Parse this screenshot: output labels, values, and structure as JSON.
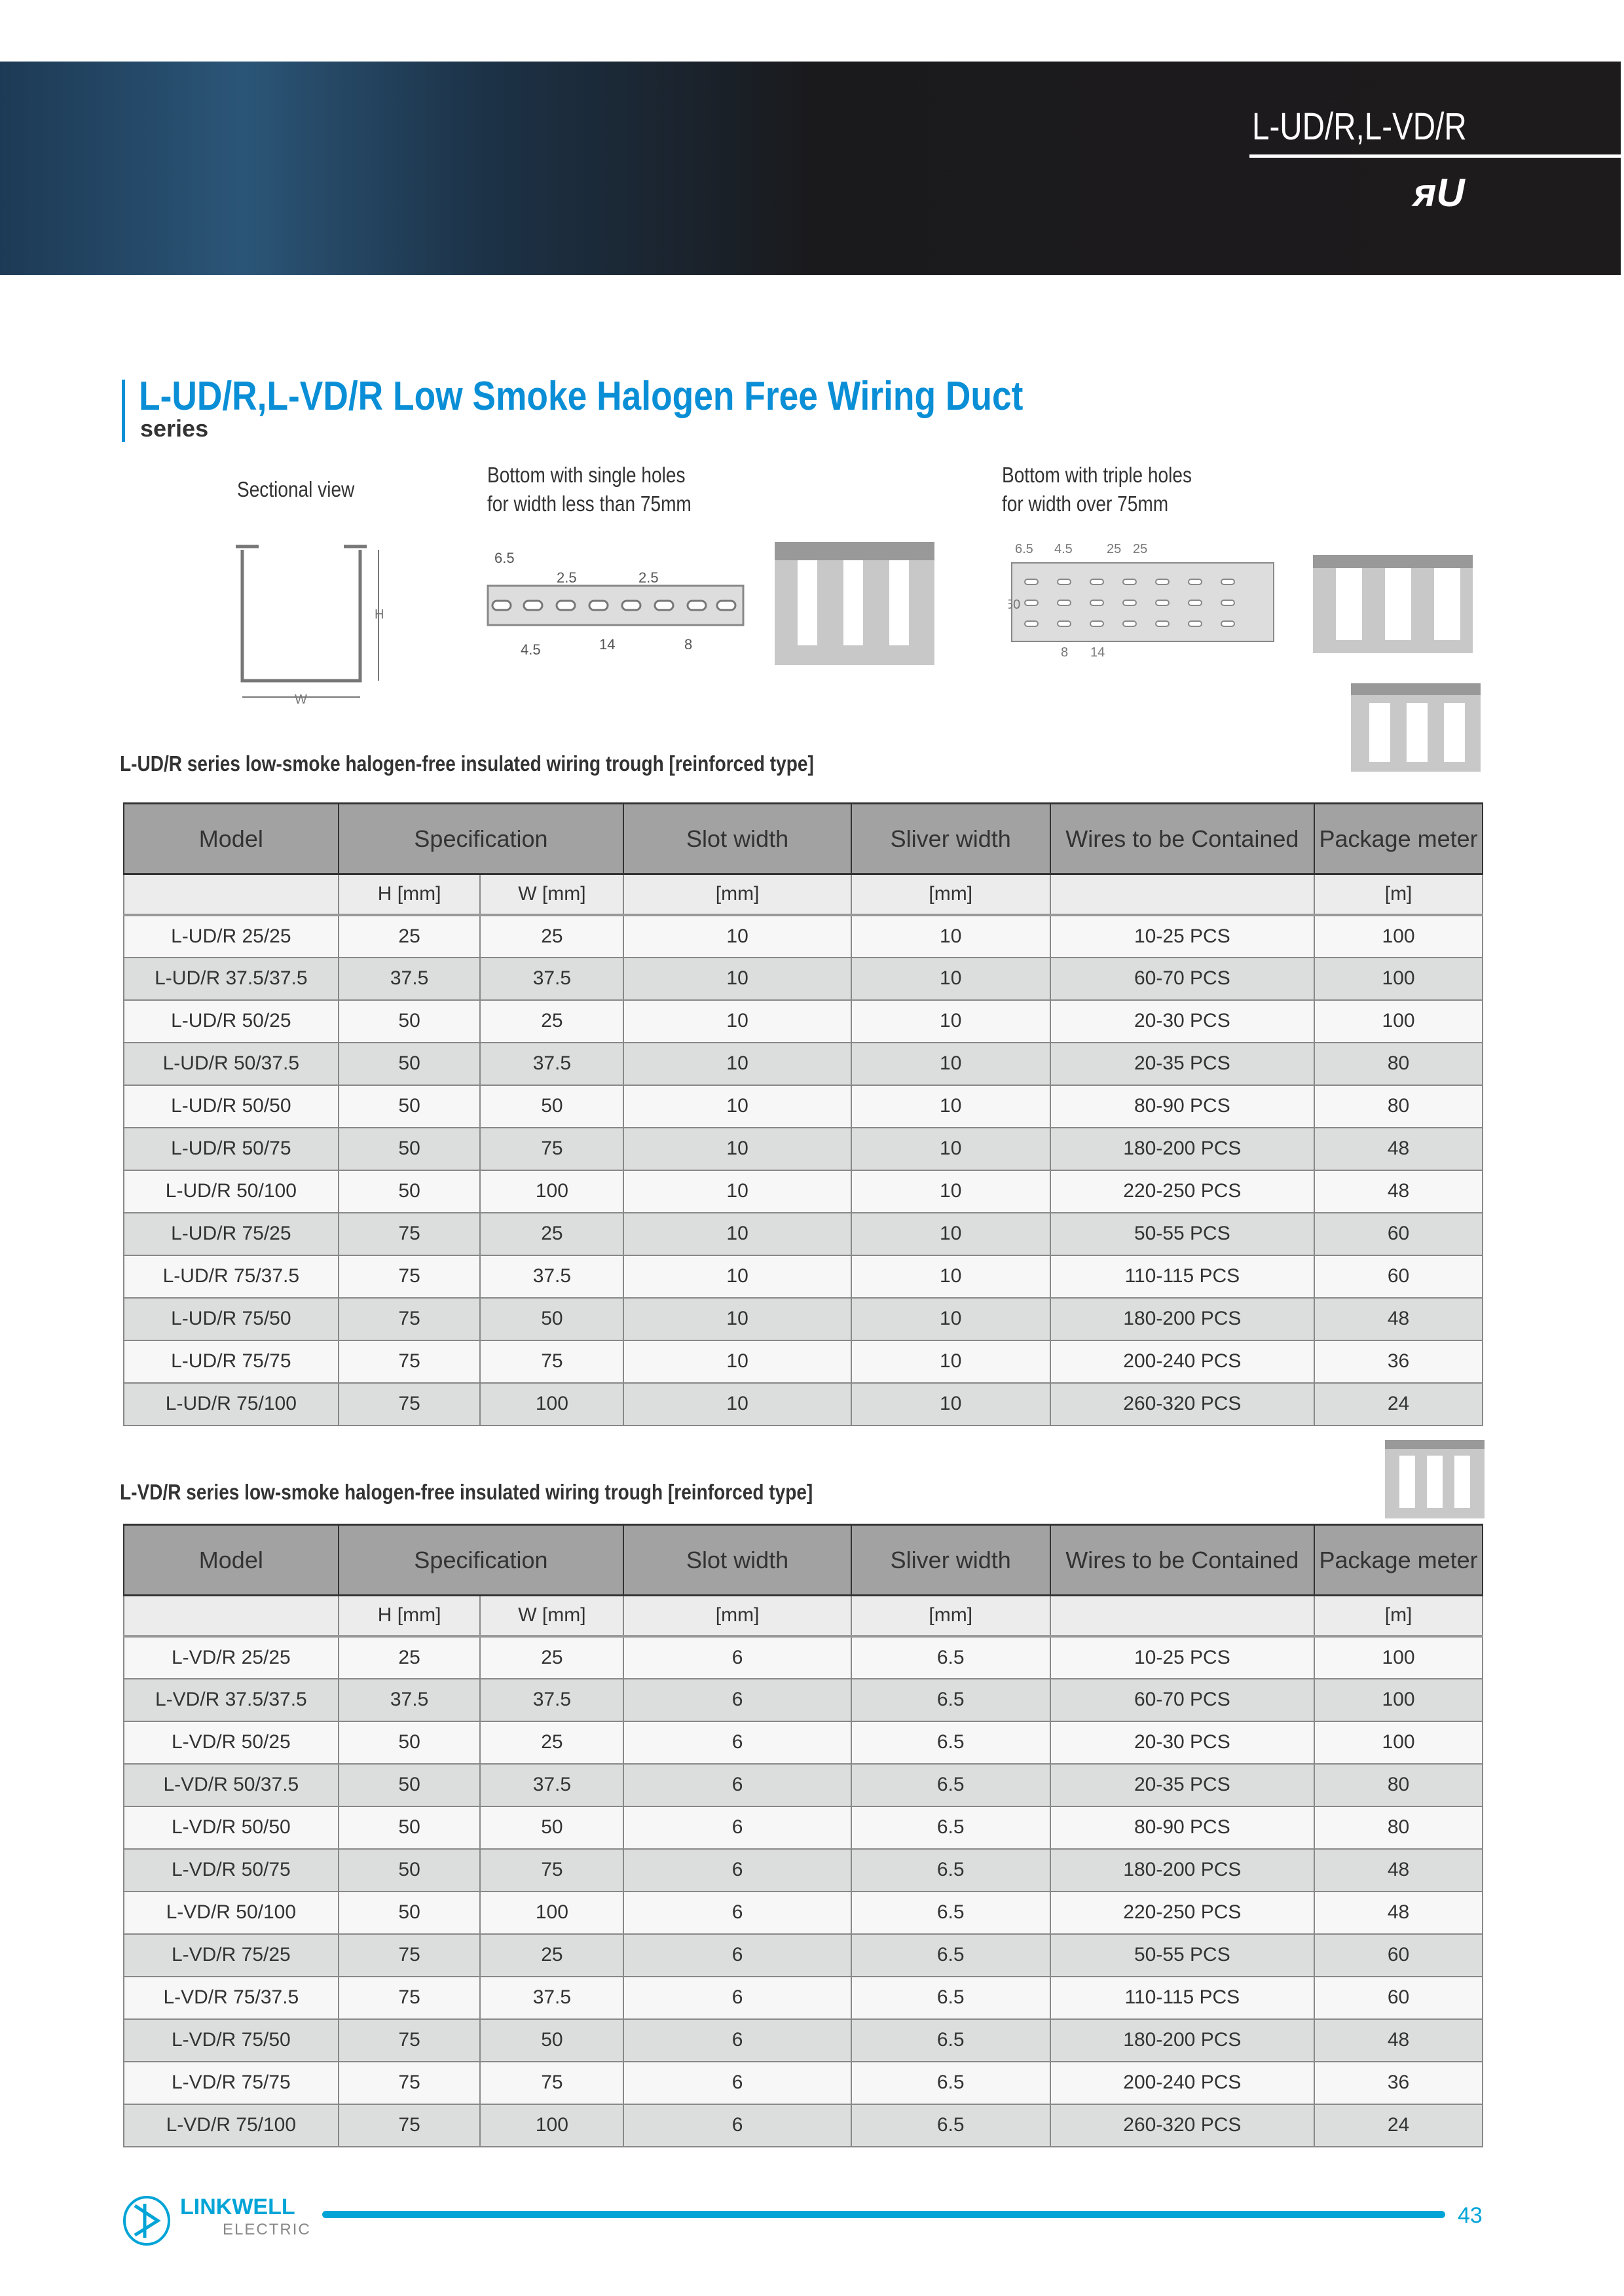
{
  "header": {
    "product_code": "L-UD/R,L-VD/R",
    "cert_logo": "UL"
  },
  "title": {
    "main": "L-UD/R,L-VD/R Low Smoke Halogen Free Wiring Duct",
    "sub": "series"
  },
  "captions": {
    "sectional": "Sectional view",
    "single_1": "Bottom with single holes",
    "single_2": "for width less than 75mm",
    "triple_1": "Bottom with triple holes",
    "triple_2": "for width over 75mm"
  },
  "drawing_labels": {
    "single": [
      "6.5",
      "2.5",
      "2.5",
      "4.5",
      "14",
      "8"
    ],
    "triple": [
      "6.5",
      "4.5",
      "25",
      "25",
      "50",
      "8",
      "14"
    ],
    "section": [
      "H",
      "W"
    ]
  },
  "columns": [
    "Model",
    "Specification",
    "Slot width",
    "Sliver width",
    "Wires to be Contained",
    "Package meter"
  ],
  "units": [
    "",
    "H [mm]",
    "W [mm]",
    "[mm]",
    "[mm]",
    "",
    "[m]"
  ],
  "table1": {
    "caption": "L-UD/R series low-smoke halogen-free insulated wiring trough [reinforced type]",
    "rows": [
      [
        "L-UD/R 25/25",
        "25",
        "25",
        "10",
        "10",
        "10-25 PCS",
        "100"
      ],
      [
        "L-UD/R 37.5/37.5",
        "37.5",
        "37.5",
        "10",
        "10",
        "60-70 PCS",
        "100"
      ],
      [
        "L-UD/R 50/25",
        "50",
        "25",
        "10",
        "10",
        "20-30 PCS",
        "100"
      ],
      [
        "L-UD/R 50/37.5",
        "50",
        "37.5",
        "10",
        "10",
        "20-35 PCS",
        "80"
      ],
      [
        "L-UD/R 50/50",
        "50",
        "50",
        "10",
        "10",
        "80-90 PCS",
        "80"
      ],
      [
        "L-UD/R 50/75",
        "50",
        "75",
        "10",
        "10",
        "180-200 PCS",
        "48"
      ],
      [
        "L-UD/R 50/100",
        "50",
        "100",
        "10",
        "10",
        "220-250 PCS",
        "48"
      ],
      [
        "L-UD/R 75/25",
        "75",
        "25",
        "10",
        "10",
        "50-55 PCS",
        "60"
      ],
      [
        "L-UD/R 75/37.5",
        "75",
        "37.5",
        "10",
        "10",
        "110-115 PCS",
        "60"
      ],
      [
        "L-UD/R 75/50",
        "75",
        "50",
        "10",
        "10",
        "180-200 PCS",
        "48"
      ],
      [
        "L-UD/R 75/75",
        "75",
        "75",
        "10",
        "10",
        "200-240 PCS",
        "36"
      ],
      [
        "L-UD/R 75/100",
        "75",
        "100",
        "10",
        "10",
        "260-320 PCS",
        "24"
      ]
    ]
  },
  "table2": {
    "caption": "L-VD/R series low-smoke halogen-free insulated wiring trough [reinforced type]",
    "rows": [
      [
        "L-VD/R 25/25",
        "25",
        "25",
        "6",
        "6.5",
        "10-25 PCS",
        "100"
      ],
      [
        "L-VD/R 37.5/37.5",
        "37.5",
        "37.5",
        "6",
        "6.5",
        "60-70 PCS",
        "100"
      ],
      [
        "L-VD/R 50/25",
        "50",
        "25",
        "6",
        "6.5",
        "20-30 PCS",
        "100"
      ],
      [
        "L-VD/R 50/37.5",
        "50",
        "37.5",
        "6",
        "6.5",
        "20-35 PCS",
        "80"
      ],
      [
        "L-VD/R 50/50",
        "50",
        "50",
        "6",
        "6.5",
        "80-90 PCS",
        "80"
      ],
      [
        "L-VD/R 50/75",
        "50",
        "75",
        "6",
        "6.5",
        "180-200 PCS",
        "48"
      ],
      [
        "L-VD/R 50/100",
        "50",
        "100",
        "6",
        "6.5",
        "220-250 PCS",
        "48"
      ],
      [
        "L-VD/R 75/25",
        "75",
        "25",
        "6",
        "6.5",
        "50-55 PCS",
        "60"
      ],
      [
        "L-VD/R 75/37.5",
        "75",
        "37.5",
        "6",
        "6.5",
        "110-115 PCS",
        "60"
      ],
      [
        "L-VD/R 75/50",
        "75",
        "50",
        "6",
        "6.5",
        "180-200 PCS",
        "48"
      ],
      [
        "L-VD/R 75/75",
        "75",
        "75",
        "6",
        "6.5",
        "200-240 PCS",
        "36"
      ],
      [
        "L-VD/R 75/100",
        "75",
        "100",
        "6",
        "6.5",
        "260-320 PCS",
        "24"
      ]
    ]
  },
  "footer": {
    "brand": "LINKWELL",
    "brand_sub": "ELECTRIC",
    "page": "43"
  },
  "colors": {
    "accent": "#0a8fd6",
    "footer": "#00a4d6",
    "header_cell": "#a2a2a2"
  }
}
